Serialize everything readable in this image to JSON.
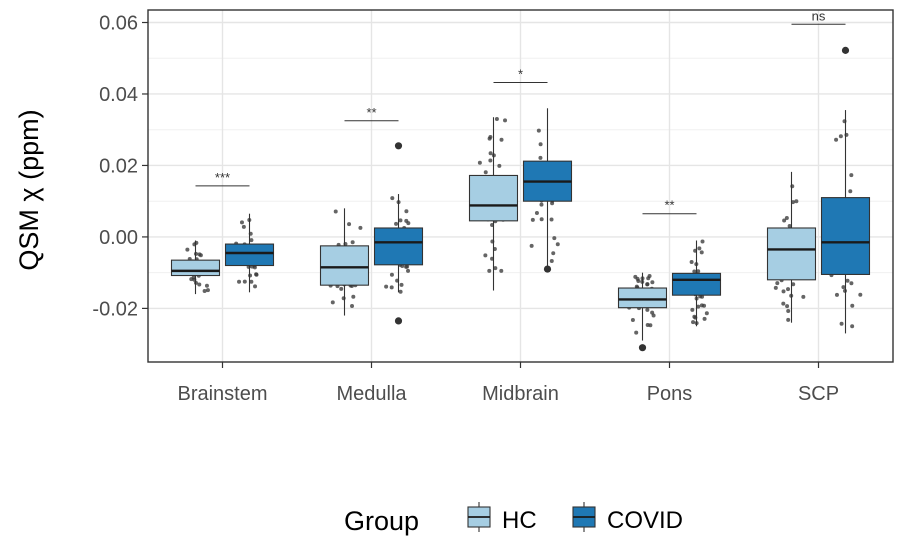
{
  "chart_data": {
    "type": "boxplot",
    "ylabel": "QSM χ (ppm)",
    "ylim": [
      -0.035,
      0.0635
    ],
    "y_ticks": [
      -0.02,
      0.0,
      0.02,
      0.04,
      0.06
    ],
    "y_tick_labels": [
      "-0.02",
      "0.00",
      "0.02",
      "0.04",
      "0.06"
    ],
    "grid": true,
    "legend_position": "bottom",
    "categories": [
      "Brainstem",
      "Medulla",
      "Midbrain",
      "Pons",
      "SCP"
    ],
    "legend": {
      "title": "Group"
    },
    "series": [
      {
        "name": "HC",
        "color": "#a6cee3",
        "boxes": [
          {
            "whisker_low": -0.016,
            "q1": -0.0108,
            "median": -0.0095,
            "q3": -0.0065,
            "whisker_high": -0.001,
            "outliers": []
          },
          {
            "whisker_low": -0.022,
            "q1": -0.0135,
            "median": -0.0085,
            "q3": -0.0025,
            "whisker_high": 0.008,
            "outliers": []
          },
          {
            "whisker_low": -0.015,
            "q1": 0.0045,
            "median": 0.0088,
            "q3": 0.0172,
            "whisker_high": 0.0335,
            "outliers": []
          },
          {
            "whisker_low": -0.029,
            "q1": -0.0198,
            "median": -0.0175,
            "q3": -0.0143,
            "whisker_high": -0.01,
            "outliers": [
              -0.031
            ]
          },
          {
            "whisker_low": -0.024,
            "q1": -0.012,
            "median": -0.0035,
            "q3": 0.0025,
            "whisker_high": 0.0182,
            "outliers": []
          }
        ]
      },
      {
        "name": "COVID",
        "color": "#1f78b4",
        "boxes": [
          {
            "whisker_low": -0.0155,
            "q1": -0.008,
            "median": -0.0045,
            "q3": -0.002,
            "whisker_high": 0.0065,
            "outliers": []
          },
          {
            "whisker_low": -0.0155,
            "q1": -0.0078,
            "median": -0.0015,
            "q3": 0.0025,
            "whisker_high": 0.012,
            "outliers": [
              0.0255,
              -0.0235
            ]
          },
          {
            "whisker_low": -0.009,
            "q1": 0.01,
            "median": 0.0155,
            "q3": 0.0212,
            "whisker_high": 0.036,
            "outliers": [
              -0.009
            ]
          },
          {
            "whisker_low": -0.025,
            "q1": -0.0163,
            "median": -0.012,
            "q3": -0.0102,
            "whisker_high": -0.001,
            "outliers": []
          },
          {
            "whisker_low": -0.027,
            "q1": -0.0105,
            "median": -0.0015,
            "q3": 0.011,
            "whisker_high": 0.0355,
            "outliers": [
              0.0522
            ]
          }
        ]
      }
    ],
    "significance": [
      {
        "category": "Brainstem",
        "label": "***",
        "y": 0.0143
      },
      {
        "category": "Medulla",
        "label": "**",
        "y": 0.0325
      },
      {
        "category": "Midbrain",
        "label": "*",
        "y": 0.0432
      },
      {
        "category": "Pons",
        "label": "**",
        "y": 0.0065
      },
      {
        "category": "SCP",
        "label": "ns",
        "y": 0.0595
      }
    ]
  }
}
